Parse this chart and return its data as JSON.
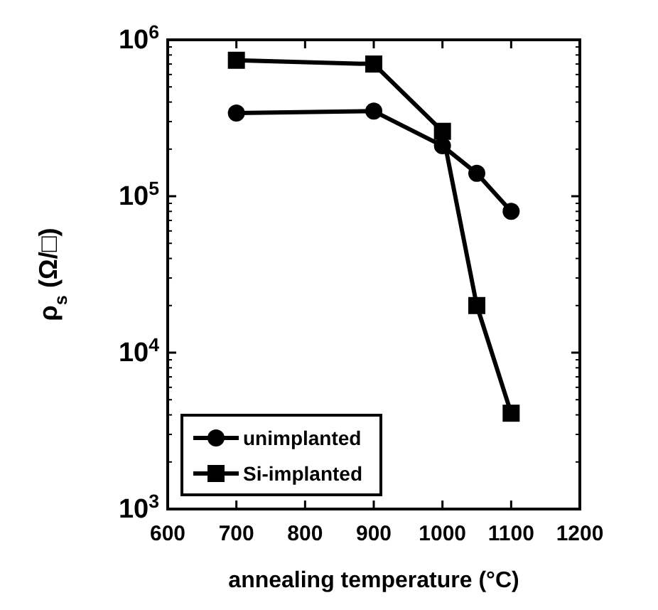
{
  "chart_data": {
    "type": "line",
    "xlabel": "annealing temperature (°C)",
    "ylabel": "ρ$_{s}$ (Ω/□)",
    "log": "y",
    "xlim": [
      600,
      1200
    ],
    "xticks": [
      600,
      700,
      800,
      900,
      1000,
      1100,
      1200
    ],
    "ylim": [
      1000,
      1000000
    ],
    "yticks": [
      {
        "value": 1000,
        "label": "10$^{3}$"
      },
      {
        "value": 10000,
        "label": "10$^{4}$"
      },
      {
        "value": 100000,
        "label": "10$^{5}$"
      },
      {
        "value": 1000000,
        "label": "10$^{6}$"
      }
    ],
    "grid": false,
    "legend": "bottom left",
    "line_style": "solid",
    "x": [
      700,
      900,
      1000,
      1050,
      1100
    ],
    "series": [
      {
        "name": "unimplanted",
        "color": "#000000",
        "marker": "circle",
        "values": [
          340000,
          350000,
          210000,
          140000,
          80000
        ]
      },
      {
        "name": "Si-implanted",
        "color": "#000000",
        "marker": "square",
        "values": [
          740000,
          700000,
          260000,
          20000,
          4100
        ]
      }
    ]
  }
}
